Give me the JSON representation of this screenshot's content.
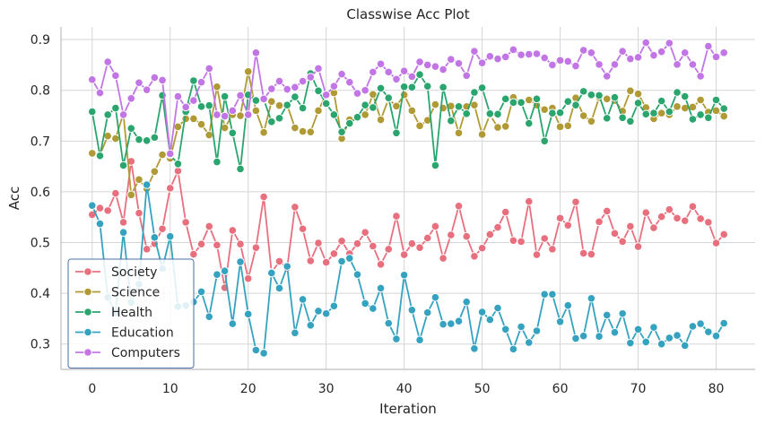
{
  "chart_data": {
    "type": "line",
    "title": "Classwise Acc Plot",
    "xlabel": "Iteration",
    "ylabel": "Acc",
    "xlim": [
      -4,
      85
    ],
    "ylim": [
      0.25,
      0.925
    ],
    "xticks": [
      0,
      10,
      20,
      30,
      40,
      50,
      60,
      70,
      80
    ],
    "yticks": [
      0.3,
      0.4,
      0.5,
      0.6,
      0.7,
      0.8,
      0.9
    ],
    "xtick_labels": [
      "0",
      "10",
      "20",
      "30",
      "40",
      "50",
      "60",
      "70",
      "80"
    ],
    "ytick_labels": [
      "0.3",
      "0.4",
      "0.5",
      "0.6",
      "0.7",
      "0.8",
      "0.9"
    ],
    "grid": true,
    "legend_position": "lower-left",
    "x": [
      0,
      1,
      2,
      3,
      4,
      5,
      6,
      7,
      8,
      9,
      10,
      11,
      12,
      13,
      14,
      15,
      16,
      17,
      18,
      19,
      20,
      21,
      22,
      23,
      24,
      25,
      26,
      27,
      28,
      29,
      30,
      31,
      32,
      33,
      34,
      35,
      36,
      37,
      38,
      39,
      40,
      41,
      42,
      43,
      44,
      45,
      46,
      47,
      48,
      49,
      50,
      51,
      52,
      53,
      54,
      55,
      56,
      57,
      58,
      59,
      60,
      61,
      62,
      63,
      64,
      65,
      66,
      67,
      68,
      69,
      70,
      71,
      72,
      73,
      74,
      75,
      76,
      77,
      78,
      79,
      80,
      81
    ],
    "series": [
      {
        "name": "Society",
        "color": "#e8707e",
        "values": [
          0.555,
          0.568,
          0.563,
          0.597,
          0.54,
          0.66,
          0.558,
          0.487,
          0.498,
          0.527,
          0.607,
          0.641,
          0.54,
          0.477,
          0.497,
          0.532,
          0.495,
          0.411,
          0.524,
          0.497,
          0.429,
          0.49,
          0.59,
          0.441,
          0.463,
          0.45,
          0.57,
          0.527,
          0.464,
          0.499,
          0.461,
          0.478,
          0.503,
          0.478,
          0.498,
          0.52,
          0.493,
          0.457,
          0.487,
          0.552,
          0.476,
          0.498,
          0.49,
          0.509,
          0.532,
          0.469,
          0.515,
          0.572,
          0.512,
          0.473,
          0.489,
          0.516,
          0.53,
          0.56,
          0.504,
          0.502,
          0.581,
          0.476,
          0.508,
          0.487,
          0.548,
          0.534,
          0.58,
          0.479,
          0.477,
          0.541,
          0.562,
          0.518,
          0.502,
          0.532,
          0.492,
          0.559,
          0.529,
          0.551,
          0.565,
          0.548,
          0.543,
          0.571,
          0.547,
          0.54,
          0.499,
          0.516
        ]
      },
      {
        "name": "Science",
        "color": "#b09a35",
        "values": [
          0.676,
          0.673,
          0.71,
          0.705,
          0.754,
          0.594,
          0.624,
          0.606,
          0.64,
          0.673,
          0.666,
          0.728,
          0.744,
          0.744,
          0.733,
          0.712,
          0.807,
          0.726,
          0.752,
          0.75,
          0.837,
          0.76,
          0.717,
          0.778,
          0.77,
          0.771,
          0.726,
          0.719,
          0.718,
          0.76,
          0.792,
          0.795,
          0.705,
          0.742,
          0.748,
          0.752,
          0.792,
          0.742,
          0.783,
          0.769,
          0.791,
          0.76,
          0.73,
          0.741,
          0.772,
          0.765,
          0.769,
          0.716,
          0.768,
          0.771,
          0.713,
          0.752,
          0.727,
          0.729,
          0.786,
          0.776,
          0.781,
          0.771,
          0.762,
          0.765,
          0.728,
          0.73,
          0.785,
          0.75,
          0.739,
          0.786,
          0.783,
          0.78,
          0.759,
          0.799,
          0.793,
          0.766,
          0.744,
          0.755,
          0.752,
          0.768,
          0.765,
          0.767,
          0.781,
          0.757,
          0.76,
          0.749
        ]
      },
      {
        "name": "Health",
        "color": "#2aa56e",
        "values": [
          0.758,
          0.671,
          0.752,
          0.765,
          0.652,
          0.725,
          0.703,
          0.701,
          0.707,
          0.79,
          0.673,
          0.655,
          0.758,
          0.819,
          0.768,
          0.77,
          0.659,
          0.788,
          0.716,
          0.645,
          0.791,
          0.78,
          0.782,
          0.738,
          0.745,
          0.771,
          0.787,
          0.765,
          0.833,
          0.799,
          0.774,
          0.752,
          0.718,
          0.735,
          0.747,
          0.771,
          0.766,
          0.804,
          0.785,
          0.716,
          0.807,
          0.806,
          0.831,
          0.808,
          0.652,
          0.806,
          0.74,
          0.768,
          0.754,
          0.796,
          0.805,
          0.754,
          0.753,
          0.783,
          0.776,
          0.776,
          0.735,
          0.783,
          0.7,
          0.755,
          0.756,
          0.778,
          0.771,
          0.798,
          0.791,
          0.79,
          0.745,
          0.786,
          0.746,
          0.739,
          0.775,
          0.753,
          0.755,
          0.779,
          0.758,
          0.796,
          0.788,
          0.743,
          0.752,
          0.746,
          0.781,
          0.764
        ]
      },
      {
        "name": "Education",
        "color": "#35a3c0",
        "values": [
          0.573,
          0.537,
          0.392,
          0.362,
          0.52,
          0.382,
          0.418,
          0.614,
          0.51,
          0.449,
          0.512,
          0.374,
          0.376,
          0.383,
          0.403,
          0.354,
          0.437,
          0.444,
          0.34,
          0.462,
          0.359,
          0.288,
          0.282,
          0.44,
          0.41,
          0.453,
          0.322,
          0.388,
          0.337,
          0.365,
          0.36,
          0.375,
          0.463,
          0.469,
          0.437,
          0.38,
          0.37,
          0.41,
          0.341,
          0.31,
          0.436,
          0.367,
          0.308,
          0.362,
          0.392,
          0.339,
          0.34,
          0.345,
          0.383,
          0.291,
          0.363,
          0.348,
          0.371,
          0.329,
          0.29,
          0.334,
          0.303,
          0.326,
          0.398,
          0.398,
          0.344,
          0.376,
          0.311,
          0.316,
          0.39,
          0.315,
          0.357,
          0.323,
          0.36,
          0.302,
          0.329,
          0.304,
          0.333,
          0.3,
          0.312,
          0.317,
          0.297,
          0.335,
          0.34,
          0.324,
          0.316,
          0.341
        ]
      },
      {
        "name": "Computers",
        "color": "#c276e6",
        "values": [
          0.821,
          0.795,
          0.856,
          0.829,
          0.752,
          0.784,
          0.815,
          0.801,
          0.825,
          0.82,
          0.675,
          0.788,
          0.767,
          0.78,
          0.816,
          0.843,
          0.752,
          0.749,
          0.76,
          0.79,
          0.752,
          0.874,
          0.783,
          0.803,
          0.818,
          0.802,
          0.806,
          0.818,
          0.826,
          0.843,
          0.791,
          0.808,
          0.832,
          0.816,
          0.794,
          0.8,
          0.836,
          0.852,
          0.836,
          0.822,
          0.838,
          0.827,
          0.856,
          0.85,
          0.847,
          0.841,
          0.861,
          0.853,
          0.829,
          0.877,
          0.854,
          0.867,
          0.862,
          0.866,
          0.88,
          0.87,
          0.871,
          0.872,
          0.864,
          0.85,
          0.859,
          0.857,
          0.848,
          0.879,
          0.874,
          0.851,
          0.828,
          0.851,
          0.877,
          0.862,
          0.865,
          0.894,
          0.869,
          0.876,
          0.893,
          0.851,
          0.874,
          0.851,
          0.828,
          0.887,
          0.866,
          0.874
        ]
      }
    ]
  }
}
